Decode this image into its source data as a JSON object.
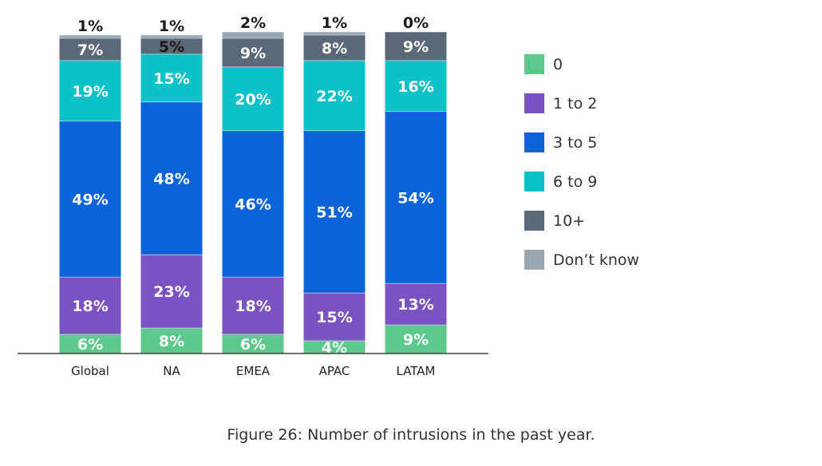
{
  "caption": "Figure 26: Number of intrusions in the past year.",
  "chart_data": {
    "type": "bar",
    "stacked": true,
    "categories": [
      "Global",
      "NA",
      "EMEA",
      "APAC",
      "LATAM"
    ],
    "ylim": [
      0,
      100
    ],
    "legend_position": "right",
    "series": [
      {
        "name": "0",
        "color": "#5cc98a",
        "values": [
          6,
          8,
          6,
          4,
          9
        ],
        "labels": [
          "6%",
          "8%",
          "6%",
          "4%",
          "9%"
        ]
      },
      {
        "name": "1 to 2",
        "color": "#7b52c2",
        "values": [
          18,
          23,
          18,
          15,
          13
        ],
        "labels": [
          "18%",
          "23%",
          "18%",
          "15%",
          "13%"
        ]
      },
      {
        "name": "3 to 5",
        "color": "#0a63d9",
        "values": [
          49,
          48,
          46,
          51,
          54
        ],
        "labels": [
          "49%",
          "48%",
          "46%",
          "51%",
          "54%"
        ]
      },
      {
        "name": "6 to 9",
        "color": "#0dc1c9",
        "values": [
          19,
          15,
          20,
          22,
          16
        ],
        "labels": [
          "19%",
          "15%",
          "20%",
          "22%",
          "16%"
        ]
      },
      {
        "name": "10+",
        "color": "#5a6877",
        "values": [
          7,
          5,
          9,
          8,
          9
        ],
        "labels": [
          "7%",
          "5%",
          "9%",
          "8%",
          "9%"
        ]
      },
      {
        "name": "Don’t know",
        "color": "#9aa6b0",
        "values": [
          1,
          1,
          2,
          1,
          0
        ],
        "labels": [
          "1%",
          "1%",
          "2%",
          "1%",
          "0%"
        ]
      }
    ]
  }
}
